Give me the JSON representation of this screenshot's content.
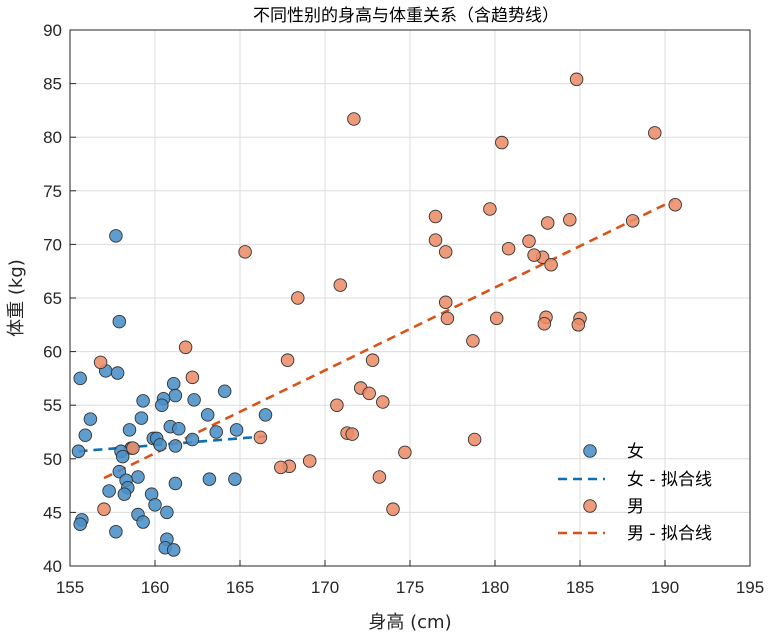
{
  "chart_data": {
    "type": "scatter",
    "title": "不同性别的身高与体重关系（含趋势线）",
    "xlabel": "身高 (cm)",
    "ylabel": "体重 (kg)",
    "xlim": [
      155,
      195
    ],
    "ylim": [
      40,
      90
    ],
    "xticks": [
      155,
      160,
      165,
      170,
      175,
      180,
      185,
      190,
      195
    ],
    "yticks": [
      40,
      45,
      50,
      55,
      60,
      65,
      70,
      75,
      80,
      85,
      90
    ],
    "grid": true,
    "legend_position": "bottom-right",
    "series": [
      {
        "name": "女",
        "kind": "scatter",
        "color": "#4a90c8",
        "points": [
          [
            157.7,
            70.8
          ],
          [
            157.9,
            62.8
          ],
          [
            157.1,
            58.2
          ],
          [
            157.8,
            58.0
          ],
          [
            155.6,
            57.5
          ],
          [
            161.1,
            57.0
          ],
          [
            164.1,
            56.3
          ],
          [
            161.2,
            55.9
          ],
          [
            162.3,
            55.5
          ],
          [
            159.3,
            55.4
          ],
          [
            160.5,
            55.6
          ],
          [
            160.4,
            55.0
          ],
          [
            166.5,
            54.1
          ],
          [
            163.1,
            54.1
          ],
          [
            156.2,
            53.7
          ],
          [
            159.2,
            53.8
          ],
          [
            160.9,
            53.0
          ],
          [
            161.4,
            52.8
          ],
          [
            164.8,
            52.7
          ],
          [
            158.5,
            52.7
          ],
          [
            155.9,
            52.2
          ],
          [
            163.6,
            52.5
          ],
          [
            162.2,
            51.8
          ],
          [
            159.9,
            51.9
          ],
          [
            160.1,
            51.9
          ],
          [
            160.3,
            51.3
          ],
          [
            161.2,
            51.2
          ],
          [
            158.6,
            51.0
          ],
          [
            155.5,
            50.7
          ],
          [
            158.0,
            50.7
          ],
          [
            158.1,
            50.2
          ],
          [
            157.9,
            48.8
          ],
          [
            159.0,
            48.3
          ],
          [
            158.3,
            48.0
          ],
          [
            157.3,
            47.0
          ],
          [
            158.4,
            47.3
          ],
          [
            161.2,
            47.7
          ],
          [
            163.2,
            48.1
          ],
          [
            164.7,
            48.1
          ],
          [
            158.2,
            46.7
          ],
          [
            159.8,
            46.7
          ],
          [
            160.0,
            45.7
          ],
          [
            160.7,
            45.0
          ],
          [
            159.0,
            44.8
          ],
          [
            155.7,
            44.3
          ],
          [
            159.3,
            44.1
          ],
          [
            155.6,
            43.9
          ],
          [
            157.7,
            43.2
          ],
          [
            160.7,
            42.5
          ],
          [
            160.6,
            41.7
          ],
          [
            161.1,
            41.5
          ]
        ]
      },
      {
        "name": "女 - 拟合线",
        "kind": "line",
        "color": "#0b6fb3",
        "points": [
          [
            155.5,
            50.7
          ],
          [
            166.5,
            52.1
          ]
        ]
      },
      {
        "name": "男",
        "kind": "scatter",
        "color": "#ea8d69",
        "points": [
          [
            184.8,
            85.4
          ],
          [
            189.4,
            80.4
          ],
          [
            171.7,
            81.7
          ],
          [
            180.4,
            79.5
          ],
          [
            179.7,
            73.3
          ],
          [
            190.6,
            73.7
          ],
          [
            176.5,
            72.6
          ],
          [
            184.4,
            72.3
          ],
          [
            183.1,
            72.0
          ],
          [
            188.1,
            72.2
          ],
          [
            176.5,
            70.4
          ],
          [
            182.0,
            70.3
          ],
          [
            180.8,
            69.6
          ],
          [
            177.1,
            69.3
          ],
          [
            165.3,
            69.3
          ],
          [
            182.8,
            68.8
          ],
          [
            182.3,
            69.0
          ],
          [
            183.3,
            68.1
          ],
          [
            170.9,
            66.2
          ],
          [
            168.4,
            65.0
          ],
          [
            177.1,
            64.6
          ],
          [
            177.2,
            63.1
          ],
          [
            180.1,
            63.1
          ],
          [
            183.0,
            63.2
          ],
          [
            185.0,
            63.1
          ],
          [
            184.9,
            62.5
          ],
          [
            182.9,
            62.6
          ],
          [
            178.7,
            61.0
          ],
          [
            161.8,
            60.4
          ],
          [
            156.8,
            59.0
          ],
          [
            167.8,
            59.2
          ],
          [
            172.8,
            59.2
          ],
          [
            162.2,
            57.6
          ],
          [
            172.1,
            56.6
          ],
          [
            172.6,
            56.1
          ],
          [
            173.4,
            55.3
          ],
          [
            170.7,
            55.0
          ],
          [
            171.3,
            52.4
          ],
          [
            171.6,
            52.3
          ],
          [
            166.2,
            52.0
          ],
          [
            158.7,
            51.0
          ],
          [
            178.8,
            51.8
          ],
          [
            174.7,
            50.6
          ],
          [
            169.1,
            49.8
          ],
          [
            167.9,
            49.3
          ],
          [
            167.4,
            49.2
          ],
          [
            173.2,
            48.3
          ],
          [
            157.0,
            45.3
          ],
          [
            174.0,
            45.3
          ]
        ]
      },
      {
        "name": "男 - 拟合线",
        "kind": "line",
        "color": "#d95319",
        "points": [
          [
            157.0,
            48.2
          ],
          [
            190.5,
            74.1
          ]
        ]
      }
    ]
  }
}
